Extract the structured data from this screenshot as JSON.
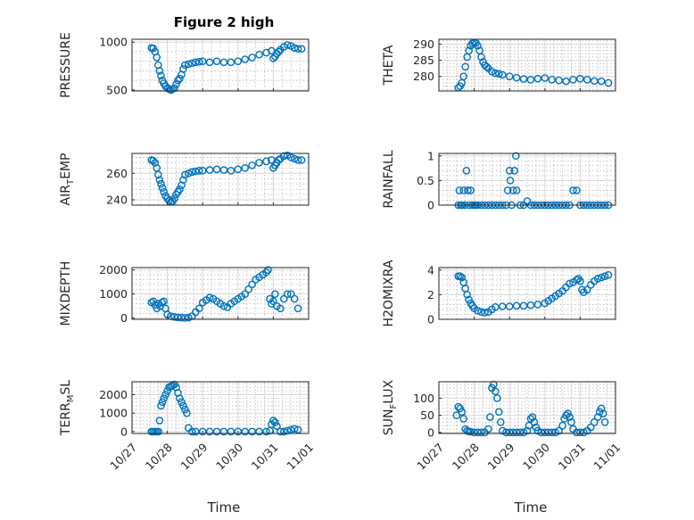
{
  "figure": {
    "title": "Figure 2 high"
  },
  "xaxis": {
    "label": "Time",
    "ticks": [
      "10/27",
      "10/28",
      "10/29",
      "10/30",
      "10/31",
      "11/01"
    ],
    "tick_values": [
      0,
      1,
      2,
      3,
      4,
      5
    ]
  },
  "chart_data": [
    {
      "type": "scatter",
      "title": "Figure 2 high",
      "ylabel": "PRESSURE",
      "ylim": [
        490,
        1030
      ],
      "yticks": [
        500,
        1000
      ],
      "yticklabels": [
        "500",
        "1000"
      ],
      "x": [
        0.55,
        0.6,
        0.65,
        0.7,
        0.74,
        0.78,
        0.82,
        0.86,
        0.9,
        0.95,
        1.0,
        1.05,
        1.1,
        1.15,
        1.2,
        1.25,
        1.3,
        1.35,
        1.4,
        1.45,
        1.5,
        1.6,
        1.7,
        1.8,
        1.9,
        2.0,
        2.2,
        2.4,
        2.6,
        2.8,
        3.0,
        3.2,
        3.4,
        3.6,
        3.8,
        3.95,
        4.0,
        4.05,
        4.1,
        4.15,
        4.2,
        4.3,
        4.4,
        4.5,
        4.6,
        4.7,
        4.8
      ],
      "y": [
        940,
        935,
        900,
        840,
        760,
        700,
        650,
        600,
        570,
        540,
        520,
        510,
        500,
        510,
        520,
        560,
        600,
        620,
        660,
        720,
        760,
        770,
        780,
        790,
        795,
        800,
        790,
        800,
        790,
        790,
        800,
        820,
        840,
        870,
        890,
        910,
        830,
        850,
        880,
        900,
        920,
        950,
        970,
        960,
        940,
        930,
        930
      ]
    },
    {
      "type": "scatter",
      "ylabel": "THETA",
      "ylim": [
        275.5,
        291.5
      ],
      "yticks": [
        280,
        285,
        290
      ],
      "yticklabels": [
        "280",
        "285",
        "290"
      ],
      "x": [
        0.55,
        0.6,
        0.65,
        0.7,
        0.75,
        0.8,
        0.85,
        0.9,
        0.95,
        1.0,
        1.05,
        1.1,
        1.15,
        1.2,
        1.25,
        1.3,
        1.35,
        1.4,
        1.5,
        1.6,
        1.7,
        1.8,
        2.0,
        2.2,
        2.4,
        2.6,
        2.8,
        3.0,
        3.2,
        3.4,
        3.6,
        3.8,
        4.0,
        4.2,
        4.4,
        4.6,
        4.8
      ],
      "y": [
        276.5,
        277,
        278,
        280,
        283,
        286,
        288,
        289.5,
        290.2,
        290.5,
        290.3,
        289.5,
        288,
        286,
        284.5,
        283.5,
        283,
        282.5,
        281.5,
        281,
        280.8,
        280.5,
        280,
        279.6,
        279.2,
        279,
        279.3,
        279.5,
        279,
        278.8,
        278.5,
        279,
        279.3,
        279,
        278.6,
        278.5,
        278
      ]
    },
    {
      "type": "scatter",
      "ylabel": "AIR_TEMP",
      "ylim": [
        236,
        275
      ],
      "yticks": [
        240,
        260
      ],
      "yticklabels": [
        "240",
        "260"
      ],
      "x": [
        0.55,
        0.6,
        0.65,
        0.7,
        0.74,
        0.78,
        0.82,
        0.86,
        0.9,
        0.95,
        1.0,
        1.05,
        1.1,
        1.15,
        1.2,
        1.25,
        1.3,
        1.35,
        1.4,
        1.45,
        1.5,
        1.6,
        1.7,
        1.8,
        1.9,
        2.0,
        2.2,
        2.4,
        2.6,
        2.8,
        3.0,
        3.2,
        3.4,
        3.6,
        3.8,
        3.95,
        4.0,
        4.05,
        4.1,
        4.15,
        4.2,
        4.3,
        4.4,
        4.5,
        4.6,
        4.7,
        4.8
      ],
      "y": [
        270,
        269.5,
        268,
        264,
        259,
        255,
        252,
        249,
        246,
        243,
        241,
        239.5,
        238.5,
        239,
        241,
        244,
        246,
        248,
        251,
        255,
        259,
        260,
        261,
        261.5,
        262,
        262,
        262.5,
        263,
        262.5,
        262,
        263,
        264,
        266,
        268,
        269,
        270,
        264,
        266,
        268,
        270,
        271,
        273,
        273.5,
        272,
        271,
        270,
        270
      ]
    },
    {
      "type": "scatter",
      "ylabel": "RAINFALL",
      "ylim": [
        0,
        1.05
      ],
      "yticks": [
        0,
        0.5,
        1
      ],
      "yticklabels": [
        "0",
        "0.5",
        "1"
      ],
      "x": [
        0.55,
        0.58,
        0.62,
        0.66,
        0.7,
        0.74,
        0.78,
        0.82,
        0.86,
        0.9,
        0.95,
        1.0,
        1.05,
        1.1,
        1.2,
        1.3,
        1.4,
        1.5,
        1.6,
        1.7,
        1.8,
        1.9,
        1.95,
        2.0,
        2.02,
        2.06,
        2.1,
        2.14,
        2.18,
        2.2,
        2.3,
        2.4,
        2.5,
        2.6,
        2.7,
        2.8,
        2.9,
        3.0,
        3.1,
        3.2,
        3.3,
        3.4,
        3.5,
        3.6,
        3.7,
        3.8,
        3.9,
        4.0,
        4.1,
        4.2,
        4.3,
        4.4,
        4.5,
        4.6,
        4.7,
        4.8
      ],
      "y": [
        0,
        0.3,
        0,
        0,
        0.3,
        0,
        0.7,
        0.3,
        0,
        0.3,
        0,
        0,
        0,
        0,
        0,
        0,
        0,
        0,
        0,
        0,
        0,
        0,
        0.3,
        0.7,
        0.5,
        0,
        0.3,
        0.7,
        1,
        0.3,
        0,
        0,
        0.08,
        0,
        0,
        0,
        0,
        0,
        0,
        0,
        0,
        0,
        0,
        0,
        0,
        0.3,
        0.3,
        0,
        0,
        0,
        0,
        0,
        0,
        0,
        0,
        0
      ]
    },
    {
      "type": "scatter",
      "ylabel": "MIXDEPTH",
      "ylim": [
        -50,
        2100
      ],
      "yticks": [
        0,
        1000,
        2000
      ],
      "yticklabels": [
        "0",
        "1000",
        "2000"
      ],
      "x": [
        0.55,
        0.6,
        0.65,
        0.7,
        0.75,
        0.8,
        0.85,
        0.9,
        0.95,
        1.0,
        1.1,
        1.2,
        1.3,
        1.4,
        1.5,
        1.6,
        1.7,
        1.8,
        1.9,
        2.0,
        2.1,
        2.2,
        2.3,
        2.4,
        2.5,
        2.6,
        2.7,
        2.8,
        2.9,
        3.0,
        3.1,
        3.2,
        3.3,
        3.4,
        3.5,
        3.6,
        3.7,
        3.8,
        3.85,
        3.9,
        3.95,
        4.0,
        4.05,
        4.1,
        4.2,
        4.3,
        4.4,
        4.5,
        4.6,
        4.7
      ],
      "y": [
        650,
        700,
        550,
        400,
        600,
        500,
        650,
        700,
        400,
        150,
        80,
        50,
        30,
        20,
        10,
        20,
        80,
        250,
        400,
        650,
        750,
        850,
        800,
        700,
        600,
        500,
        450,
        600,
        700,
        800,
        900,
        1000,
        1200,
        1400,
        1600,
        1700,
        1800,
        1900,
        2000,
        800,
        600,
        700,
        1000,
        500,
        400,
        800,
        1000,
        1000,
        800,
        400
      ]
    },
    {
      "type": "scatter",
      "ylabel": "H2OMIXRA",
      "ylim": [
        0,
        4.2
      ],
      "yticks": [
        0,
        2,
        4
      ],
      "yticklabels": [
        "0",
        "2",
        "4"
      ],
      "x": [
        0.55,
        0.6,
        0.65,
        0.7,
        0.75,
        0.8,
        0.85,
        0.9,
        0.95,
        1.0,
        1.1,
        1.2,
        1.3,
        1.4,
        1.5,
        1.6,
        1.8,
        2.0,
        2.2,
        2.4,
        2.6,
        2.8,
        3.0,
        3.1,
        3.2,
        3.3,
        3.4,
        3.5,
        3.6,
        3.7,
        3.8,
        3.9,
        3.95,
        4.0,
        4.05,
        4.1,
        4.2,
        4.3,
        4.4,
        4.5,
        4.6,
        4.7,
        4.8
      ],
      "y": [
        3.5,
        3.5,
        3.4,
        3,
        2.5,
        2,
        1.6,
        1.3,
        1.1,
        0.9,
        0.7,
        0.6,
        0.55,
        0.6,
        0.8,
        1,
        1.05,
        1.05,
        1.1,
        1.1,
        1.15,
        1.2,
        1.3,
        1.5,
        1.7,
        1.9,
        2.1,
        2.3,
        2.6,
        2.9,
        3,
        3.2,
        3.3,
        3.1,
        2.4,
        2.2,
        2.4,
        2.8,
        3.1,
        3.3,
        3.4,
        3.5,
        3.6
      ]
    },
    {
      "type": "scatter",
      "ylabel": "TERR_MSL",
      "ylim": [
        -100,
        2700
      ],
      "yticks": [
        0,
        1000,
        2000
      ],
      "yticklabels": [
        "0",
        "1000",
        "2000"
      ],
      "x": [
        0.55,
        0.6,
        0.65,
        0.7,
        0.75,
        0.78,
        0.82,
        0.86,
        0.9,
        0.95,
        1.0,
        1.05,
        1.1,
        1.15,
        1.2,
        1.25,
        1.3,
        1.35,
        1.4,
        1.45,
        1.5,
        1.55,
        1.6,
        1.7,
        1.8,
        2.0,
        2.2,
        2.4,
        2.6,
        2.8,
        3.0,
        3.2,
        3.4,
        3.6,
        3.8,
        3.9,
        3.95,
        4.0,
        4.05,
        4.1,
        4.2,
        4.3,
        4.4,
        4.5,
        4.6,
        4.7
      ],
      "y": [
        0,
        0,
        0,
        0,
        0,
        600,
        1400,
        1600,
        1800,
        2000,
        2200,
        2400,
        2450,
        2500,
        2550,
        2400,
        2100,
        1800,
        1600,
        1400,
        1200,
        1000,
        200,
        0,
        0,
        0,
        0,
        0,
        0,
        0,
        0,
        0,
        0,
        0,
        0,
        50,
        400,
        600,
        500,
        300,
        0,
        0,
        50,
        100,
        150,
        100
      ]
    },
    {
      "type": "scatter",
      "ylabel": "SUN_FLUX",
      "ylim": [
        -3,
        148
      ],
      "yticks": [
        0,
        50,
        100
      ],
      "yticklabels": [
        "0",
        "50",
        "100"
      ],
      "x": [
        0.5,
        0.55,
        0.6,
        0.65,
        0.7,
        0.75,
        0.8,
        0.85,
        0.9,
        1.0,
        1.1,
        1.2,
        1.3,
        1.4,
        1.45,
        1.5,
        1.55,
        1.6,
        1.65,
        1.7,
        1.75,
        1.8,
        1.9,
        2.0,
        2.1,
        2.2,
        2.3,
        2.4,
        2.5,
        2.55,
        2.6,
        2.65,
        2.7,
        2.75,
        2.8,
        2.9,
        3.0,
        3.1,
        3.2,
        3.3,
        3.4,
        3.5,
        3.55,
        3.6,
        3.65,
        3.7,
        3.75,
        3.8,
        3.9,
        4.0,
        4.1,
        4.2,
        4.3,
        4.4,
        4.5,
        4.55,
        4.6,
        4.65,
        4.7
      ],
      "y": [
        50,
        75,
        70,
        60,
        40,
        10,
        5,
        3,
        2,
        0,
        0,
        0,
        0,
        10,
        45,
        130,
        140,
        120,
        100,
        60,
        30,
        5,
        0,
        0,
        0,
        0,
        0,
        0,
        5,
        20,
        40,
        45,
        30,
        15,
        5,
        0,
        0,
        0,
        0,
        0,
        5,
        20,
        40,
        50,
        55,
        45,
        30,
        10,
        0,
        0,
        0,
        5,
        15,
        30,
        45,
        60,
        70,
        55,
        30
      ]
    }
  ]
}
